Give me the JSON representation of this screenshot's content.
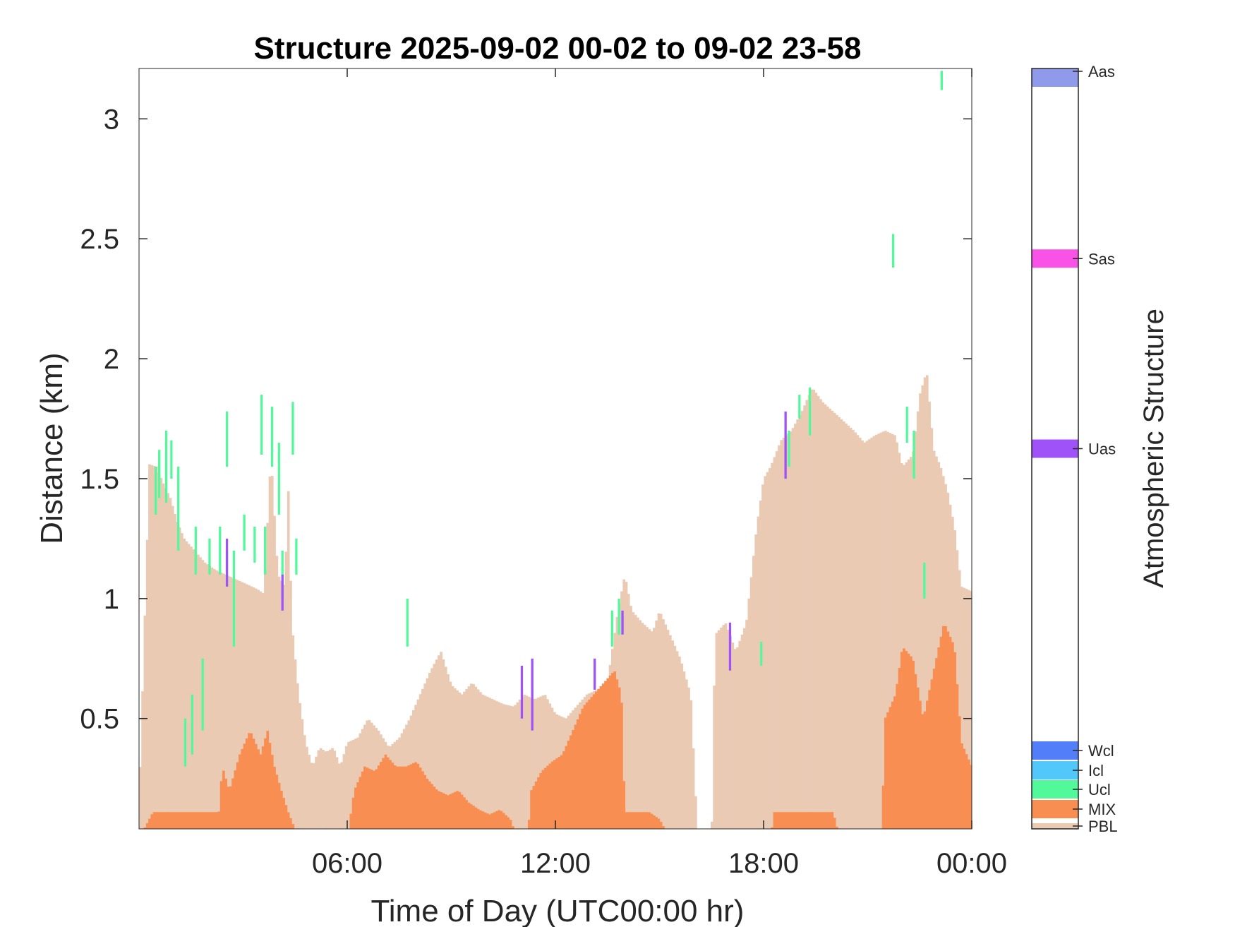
{
  "chart_data": {
    "type": "heatmap",
    "title": "Structure 2025-09-02 00-02 to 09-02 23-58",
    "xlabel": "Time of Day (UTC00:00 hr)",
    "ylabel": "Distance (km)",
    "xlim": [
      0,
      24
    ],
    "ylim": [
      0.04,
      3.21
    ],
    "x_ticks": [
      {
        "value": 6,
        "label": "06:00"
      },
      {
        "value": 12,
        "label": "12:00"
      },
      {
        "value": 18,
        "label": "18:00"
      },
      {
        "value": 24,
        "label": "00:00"
      }
    ],
    "y_ticks": [
      {
        "value": 0.5,
        "label": "0.5"
      },
      {
        "value": 1,
        "label": "1"
      },
      {
        "value": 1.5,
        "label": "1.5"
      },
      {
        "value": 2,
        "label": "2"
      },
      {
        "value": 2.5,
        "label": "2.5"
      },
      {
        "value": 3,
        "label": "3"
      }
    ],
    "colorbar": {
      "title": "Atmospheric Structure",
      "classes": [
        {
          "label": "PBL",
          "color": "#EBCAB4"
        },
        {
          "label": "MIX",
          "color": "#F98E52"
        },
        {
          "label": "Ucl",
          "color": "#52F99A"
        },
        {
          "label": "Icl",
          "color": "#52C7F9"
        },
        {
          "label": "Wcl",
          "color": "#527EF9"
        },
        {
          "label": "Uas",
          "color": "#A052F9"
        },
        {
          "label": "Sas",
          "color": "#F952E7"
        },
        {
          "label": "Aas",
          "color": "#8F9AEB"
        }
      ]
    },
    "time_step_hr": 0.0667,
    "pbl_top_km": [
      [
        0.0,
        0.14
      ],
      [
        0.3,
        1.56
      ],
      [
        0.5,
        1.55
      ],
      [
        0.7,
        1.48
      ],
      [
        0.9,
        1.42
      ],
      [
        1.1,
        1.32
      ],
      [
        1.3,
        1.25
      ],
      [
        1.6,
        1.2
      ],
      [
        1.9,
        1.15
      ],
      [
        2.2,
        1.12
      ],
      [
        2.5,
        1.1
      ],
      [
        2.8,
        1.08
      ],
      [
        3.1,
        1.06
      ],
      [
        3.4,
        1.04
      ],
      [
        3.6,
        1.02
      ],
      [
        3.8,
        1.6
      ],
      [
        4.0,
        1.1
      ],
      [
        4.2,
        1.05
      ],
      [
        4.3,
        1.46
      ],
      [
        4.4,
        0.9
      ],
      [
        4.6,
        0.6
      ],
      [
        4.8,
        0.4
      ],
      [
        5.0,
        0.3
      ],
      [
        5.2,
        0.38
      ],
      [
        5.4,
        0.36
      ],
      [
        5.6,
        0.38
      ],
      [
        5.8,
        0.3
      ],
      [
        6.0,
        0.4
      ],
      [
        6.3,
        0.42
      ],
      [
        6.6,
        0.5
      ],
      [
        6.9,
        0.45
      ],
      [
        7.2,
        0.38
      ],
      [
        7.5,
        0.42
      ],
      [
        7.8,
        0.5
      ],
      [
        8.1,
        0.6
      ],
      [
        8.4,
        0.7
      ],
      [
        8.7,
        0.78
      ],
      [
        9.0,
        0.64
      ],
      [
        9.3,
        0.6
      ],
      [
        9.6,
        0.65
      ],
      [
        9.9,
        0.6
      ],
      [
        10.2,
        0.58
      ],
      [
        10.5,
        0.56
      ],
      [
        10.8,
        0.55
      ],
      [
        11.1,
        0.6
      ],
      [
        11.4,
        0.58
      ],
      [
        11.7,
        0.6
      ],
      [
        12.0,
        0.52
      ],
      [
        12.3,
        0.5
      ],
      [
        12.6,
        0.55
      ],
      [
        12.9,
        0.6
      ],
      [
        13.2,
        0.62
      ],
      [
        13.5,
        0.65
      ],
      [
        13.8,
        0.95
      ],
      [
        14.0,
        1.1
      ],
      [
        14.2,
        0.95
      ],
      [
        14.5,
        0.9
      ],
      [
        14.8,
        0.86
      ],
      [
        15.0,
        0.95
      ],
      [
        15.3,
        0.85
      ],
      [
        15.6,
        0.75
      ],
      [
        15.9,
        0.6
      ],
      [
        16.1,
        0.0
      ],
      [
        16.5,
        0.0
      ],
      [
        16.6,
        0.85
      ],
      [
        16.9,
        0.9
      ],
      [
        17.2,
        0.78
      ],
      [
        17.5,
        0.9
      ],
      [
        17.8,
        1.3
      ],
      [
        18.0,
        1.5
      ],
      [
        18.2,
        1.55
      ],
      [
        18.5,
        1.66
      ],
      [
        18.8,
        1.7
      ],
      [
        19.1,
        1.78
      ],
      [
        19.4,
        1.88
      ],
      [
        19.7,
        1.82
      ],
      [
        20.0,
        1.78
      ],
      [
        20.3,
        1.74
      ],
      [
        20.6,
        1.7
      ],
      [
        20.9,
        1.65
      ],
      [
        21.2,
        1.68
      ],
      [
        21.5,
        1.7
      ],
      [
        21.8,
        1.68
      ],
      [
        22.0,
        1.55
      ],
      [
        22.3,
        1.6
      ],
      [
        22.5,
        1.85
      ],
      [
        22.7,
        1.95
      ],
      [
        22.9,
        1.62
      ],
      [
        23.1,
        1.55
      ],
      [
        23.3,
        1.45
      ],
      [
        23.5,
        1.3
      ],
      [
        23.7,
        1.05
      ],
      [
        24.0,
        1.03
      ]
    ],
    "mix_top_km": [
      [
        0.0,
        0.0
      ],
      [
        0.4,
        0.11
      ],
      [
        2.3,
        0.11
      ],
      [
        2.4,
        0.3
      ],
      [
        2.6,
        0.2
      ],
      [
        2.9,
        0.35
      ],
      [
        3.2,
        0.45
      ],
      [
        3.5,
        0.35
      ],
      [
        3.7,
        0.45
      ],
      [
        3.9,
        0.3
      ],
      [
        4.1,
        0.2
      ],
      [
        4.3,
        0.11
      ],
      [
        4.6,
        0.0
      ],
      [
        6.0,
        0.0
      ],
      [
        6.2,
        0.2
      ],
      [
        6.5,
        0.3
      ],
      [
        6.8,
        0.28
      ],
      [
        7.1,
        0.35
      ],
      [
        7.4,
        0.3
      ],
      [
        7.7,
        0.3
      ],
      [
        8.0,
        0.32
      ],
      [
        8.3,
        0.25
      ],
      [
        8.6,
        0.2
      ],
      [
        8.9,
        0.18
      ],
      [
        9.2,
        0.2
      ],
      [
        9.5,
        0.15
      ],
      [
        9.8,
        0.12
      ],
      [
        10.1,
        0.1
      ],
      [
        10.4,
        0.12
      ],
      [
        10.7,
        0.08
      ],
      [
        10.9,
        0.0
      ],
      [
        11.2,
        0.0
      ],
      [
        11.3,
        0.2
      ],
      [
        11.6,
        0.28
      ],
      [
        11.9,
        0.32
      ],
      [
        12.2,
        0.35
      ],
      [
        12.5,
        0.45
      ],
      [
        12.8,
        0.55
      ],
      [
        13.1,
        0.6
      ],
      [
        13.4,
        0.65
      ],
      [
        13.7,
        0.7
      ],
      [
        13.9,
        0.6
      ],
      [
        14.0,
        0.11
      ],
      [
        14.7,
        0.11
      ],
      [
        15.0,
        0.08
      ],
      [
        15.3,
        0.0
      ],
      [
        18.2,
        0.0
      ],
      [
        18.3,
        0.11
      ],
      [
        20.0,
        0.11
      ],
      [
        20.2,
        0.0
      ],
      [
        21.4,
        0.0
      ],
      [
        21.5,
        0.5
      ],
      [
        21.8,
        0.6
      ],
      [
        22.0,
        0.8
      ],
      [
        22.3,
        0.75
      ],
      [
        22.6,
        0.5
      ],
      [
        22.9,
        0.7
      ],
      [
        23.2,
        0.9
      ],
      [
        23.5,
        0.8
      ],
      [
        23.7,
        0.4
      ],
      [
        24.0,
        0.3
      ]
    ],
    "ucl_segments": [
      [
        0.45,
        1.35,
        1.55
      ],
      [
        0.55,
        1.42,
        1.62
      ],
      [
        0.75,
        1.4,
        1.7
      ],
      [
        0.9,
        1.5,
        1.66
      ],
      [
        1.1,
        1.2,
        1.55
      ],
      [
        1.3,
        0.3,
        0.5
      ],
      [
        1.5,
        0.35,
        0.6
      ],
      [
        1.6,
        1.1,
        1.3
      ],
      [
        1.8,
        0.45,
        0.75
      ],
      [
        2.0,
        1.1,
        1.25
      ],
      [
        2.3,
        1.1,
        1.3
      ],
      [
        2.5,
        1.55,
        1.78
      ],
      [
        2.5,
        1.05,
        1.2
      ],
      [
        2.7,
        0.8,
        1.2
      ],
      [
        3.0,
        1.2,
        1.35
      ],
      [
        3.3,
        1.15,
        1.3
      ],
      [
        3.5,
        1.6,
        1.85
      ],
      [
        3.6,
        1.1,
        1.3
      ],
      [
        3.8,
        1.55,
        1.8
      ],
      [
        4.0,
        1.35,
        1.65
      ],
      [
        4.1,
        1.0,
        1.2
      ],
      [
        4.4,
        1.6,
        1.82
      ],
      [
        4.5,
        1.1,
        1.25
      ],
      [
        7.7,
        0.8,
        1.0
      ],
      [
        13.6,
        0.8,
        0.95
      ],
      [
        13.8,
        0.85,
        1.0
      ],
      [
        17.9,
        0.72,
        0.82
      ],
      [
        18.7,
        1.55,
        1.7
      ],
      [
        19.0,
        1.75,
        1.85
      ],
      [
        19.3,
        1.68,
        1.88
      ],
      [
        21.7,
        2.38,
        2.52
      ],
      [
        22.1,
        1.65,
        1.8
      ],
      [
        22.3,
        1.5,
        1.7
      ],
      [
        22.6,
        1.0,
        1.15
      ],
      [
        23.1,
        3.12,
        3.2
      ]
    ],
    "uas_segments": [
      [
        2.5,
        1.05,
        1.25
      ],
      [
        4.1,
        0.95,
        1.1
      ],
      [
        11.0,
        0.5,
        0.72
      ],
      [
        11.3,
        0.45,
        0.75
      ],
      [
        13.1,
        0.62,
        0.75
      ],
      [
        13.9,
        0.85,
        0.95
      ],
      [
        17.0,
        0.7,
        0.9
      ],
      [
        18.6,
        1.5,
        1.78
      ]
    ]
  }
}
